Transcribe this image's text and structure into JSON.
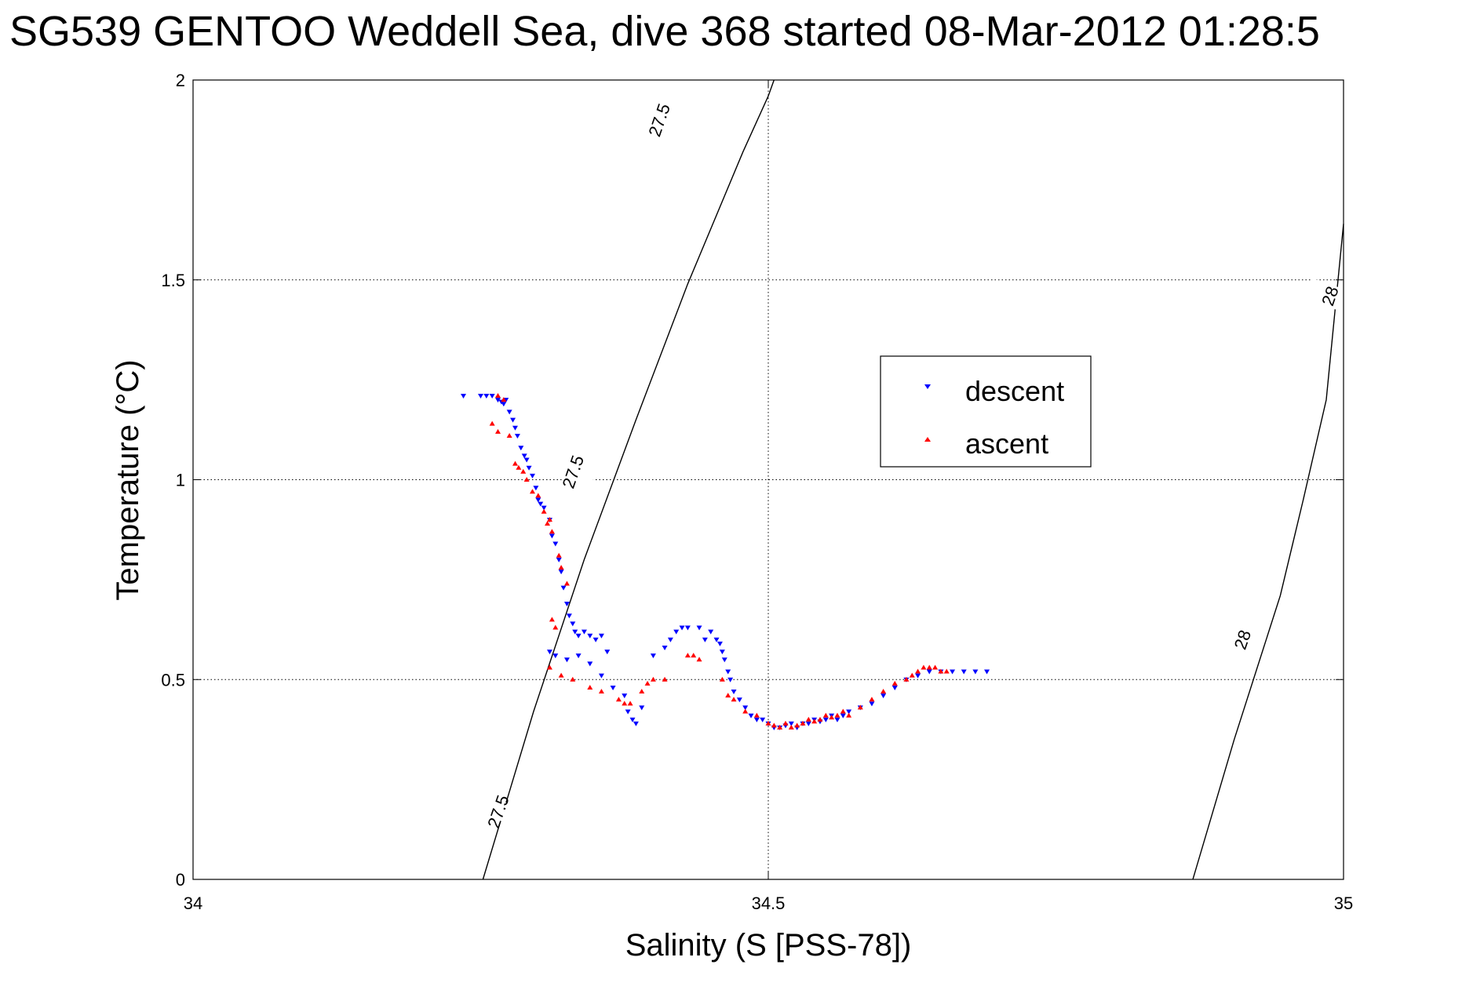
{
  "chart_data": {
    "type": "scatter",
    "title": "SG539 GENTOO Weddell Sea, dive 368 started 08-Mar-2012 01:28:5",
    "xlabel": "Salinity (S [PSS-78])",
    "ylabel": "Temperature (°C)",
    "xlim": [
      34,
      35
    ],
    "ylim": [
      0,
      2
    ],
    "grid": true,
    "legend_position": "upper-right",
    "x_ticks": [
      34,
      34.5,
      35
    ],
    "x_tick_labels": [
      "34",
      "34.5",
      "35"
    ],
    "y_ticks": [
      0,
      0.5,
      1,
      1.5,
      2
    ],
    "y_tick_labels": [
      "0",
      "0.5",
      "1",
      "1.5",
      "2"
    ],
    "series": [
      {
        "name": "descent",
        "marker": "triangle-down",
        "color": "#0000ff",
        "points": [
          [
            34.235,
            1.21
          ],
          [
            34.25,
            1.21
          ],
          [
            34.255,
            1.21
          ],
          [
            34.26,
            1.21
          ],
          [
            34.265,
            1.2
          ],
          [
            34.268,
            1.195
          ],
          [
            34.27,
            1.19
          ],
          [
            34.272,
            1.2
          ],
          [
            34.275,
            1.17
          ],
          [
            34.278,
            1.15
          ],
          [
            34.28,
            1.13
          ],
          [
            34.282,
            1.11
          ],
          [
            34.285,
            1.08
          ],
          [
            34.288,
            1.06
          ],
          [
            34.29,
            1.05
          ],
          [
            34.292,
            1.03
          ],
          [
            34.295,
            1.01
          ],
          [
            34.298,
            0.98
          ],
          [
            34.3,
            0.95
          ],
          [
            34.302,
            0.94
          ],
          [
            34.305,
            0.93
          ],
          [
            34.31,
            0.9
          ],
          [
            34.312,
            0.86
          ],
          [
            34.315,
            0.84
          ],
          [
            34.318,
            0.8
          ],
          [
            34.32,
            0.77
          ],
          [
            34.322,
            0.73
          ],
          [
            34.325,
            0.69
          ],
          [
            34.327,
            0.66
          ],
          [
            34.33,
            0.64
          ],
          [
            34.332,
            0.62
          ],
          [
            34.335,
            0.61
          ],
          [
            34.34,
            0.62
          ],
          [
            34.345,
            0.61
          ],
          [
            34.35,
            0.6
          ],
          [
            34.355,
            0.61
          ],
          [
            34.36,
            0.57
          ],
          [
            34.31,
            0.57
          ],
          [
            34.315,
            0.56
          ],
          [
            34.325,
            0.55
          ],
          [
            34.335,
            0.56
          ],
          [
            34.345,
            0.54
          ],
          [
            34.355,
            0.51
          ],
          [
            34.365,
            0.48
          ],
          [
            34.375,
            0.46
          ],
          [
            34.378,
            0.42
          ],
          [
            34.382,
            0.4
          ],
          [
            34.385,
            0.39
          ],
          [
            34.39,
            0.43
          ],
          [
            34.4,
            0.56
          ],
          [
            34.41,
            0.58
          ],
          [
            34.415,
            0.6
          ],
          [
            34.42,
            0.62
          ],
          [
            34.425,
            0.63
          ],
          [
            34.43,
            0.63
          ],
          [
            34.44,
            0.63
          ],
          [
            34.445,
            0.6
          ],
          [
            34.45,
            0.62
          ],
          [
            34.455,
            0.6
          ],
          [
            34.458,
            0.59
          ],
          [
            34.46,
            0.57
          ],
          [
            34.462,
            0.55
          ],
          [
            34.465,
            0.52
          ],
          [
            34.467,
            0.5
          ],
          [
            34.47,
            0.47
          ],
          [
            34.475,
            0.45
          ],
          [
            34.48,
            0.43
          ],
          [
            34.485,
            0.41
          ],
          [
            34.49,
            0.4
          ],
          [
            34.495,
            0.4
          ],
          [
            34.5,
            0.39
          ],
          [
            34.505,
            0.38
          ],
          [
            34.51,
            0.38
          ],
          [
            34.515,
            0.385
          ],
          [
            34.52,
            0.39
          ],
          [
            34.525,
            0.38
          ],
          [
            34.53,
            0.39
          ],
          [
            34.535,
            0.39
          ],
          [
            34.54,
            0.4
          ],
          [
            34.545,
            0.395
          ],
          [
            34.55,
            0.4
          ],
          [
            34.555,
            0.41
          ],
          [
            34.56,
            0.4
          ],
          [
            34.565,
            0.41
          ],
          [
            34.57,
            0.42
          ],
          [
            34.58,
            0.43
          ],
          [
            34.59,
            0.44
          ],
          [
            34.6,
            0.46
          ],
          [
            34.61,
            0.48
          ],
          [
            34.62,
            0.5
          ],
          [
            34.63,
            0.51
          ],
          [
            34.64,
            0.52
          ],
          [
            34.65,
            0.52
          ],
          [
            34.66,
            0.52
          ],
          [
            34.67,
            0.52
          ],
          [
            34.68,
            0.52
          ],
          [
            34.69,
            0.52
          ]
        ]
      },
      {
        "name": "ascent",
        "marker": "triangle-up",
        "color": "#ff0000",
        "points": [
          [
            34.265,
            1.21
          ],
          [
            34.27,
            1.2
          ],
          [
            34.26,
            1.14
          ],
          [
            34.265,
            1.12
          ],
          [
            34.275,
            1.11
          ],
          [
            34.28,
            1.04
          ],
          [
            34.283,
            1.03
          ],
          [
            34.287,
            1.02
          ],
          [
            34.29,
            1.0
          ],
          [
            34.295,
            0.97
          ],
          [
            34.3,
            0.96
          ],
          [
            34.305,
            0.92
          ],
          [
            34.308,
            0.89
          ],
          [
            34.31,
            0.9
          ],
          [
            34.312,
            0.87
          ],
          [
            34.318,
            0.81
          ],
          [
            34.32,
            0.78
          ],
          [
            34.325,
            0.74
          ],
          [
            34.312,
            0.65
          ],
          [
            34.315,
            0.63
          ],
          [
            34.31,
            0.53
          ],
          [
            34.32,
            0.51
          ],
          [
            34.33,
            0.5
          ],
          [
            34.345,
            0.48
          ],
          [
            34.355,
            0.47
          ],
          [
            34.37,
            0.45
          ],
          [
            34.375,
            0.44
          ],
          [
            34.38,
            0.44
          ],
          [
            34.39,
            0.47
          ],
          [
            34.395,
            0.49
          ],
          [
            34.4,
            0.5
          ],
          [
            34.41,
            0.5
          ],
          [
            34.43,
            0.56
          ],
          [
            34.435,
            0.56
          ],
          [
            34.44,
            0.55
          ],
          [
            34.46,
            0.5
          ],
          [
            34.465,
            0.46
          ],
          [
            34.47,
            0.45
          ],
          [
            34.48,
            0.42
          ],
          [
            34.49,
            0.41
          ],
          [
            34.5,
            0.39
          ],
          [
            34.505,
            0.385
          ],
          [
            34.51,
            0.38
          ],
          [
            34.515,
            0.39
          ],
          [
            34.52,
            0.38
          ],
          [
            34.525,
            0.385
          ],
          [
            34.53,
            0.39
          ],
          [
            34.535,
            0.4
          ],
          [
            34.54,
            0.395
          ],
          [
            34.545,
            0.4
          ],
          [
            34.55,
            0.41
          ],
          [
            34.555,
            0.405
          ],
          [
            34.56,
            0.41
          ],
          [
            34.565,
            0.42
          ],
          [
            34.57,
            0.41
          ],
          [
            34.58,
            0.43
          ],
          [
            34.59,
            0.45
          ],
          [
            34.6,
            0.47
          ],
          [
            34.61,
            0.49
          ],
          [
            34.62,
            0.5
          ],
          [
            34.625,
            0.51
          ],
          [
            34.63,
            0.52
          ],
          [
            34.635,
            0.53
          ],
          [
            34.64,
            0.53
          ],
          [
            34.645,
            0.53
          ],
          [
            34.65,
            0.52
          ],
          [
            34.655,
            0.52
          ]
        ]
      }
    ],
    "contours": [
      {
        "level": "27.5",
        "points": [
          [
            34.252,
            0.0
          ],
          [
            34.296,
            0.42
          ],
          [
            34.34,
            0.8
          ],
          [
            34.385,
            1.15
          ],
          [
            34.43,
            1.49
          ],
          [
            34.478,
            1.82
          ],
          [
            34.5,
            1.96
          ],
          [
            34.505,
            2.0
          ]
        ],
        "labels": [
          {
            "text": "27.5",
            "x": 34.265,
            "y": 0.17
          },
          {
            "text": "27.5",
            "x": 34.33,
            "y": 1.02
          },
          {
            "text": "27.5",
            "x": 34.405,
            "y": 1.9
          }
        ]
      },
      {
        "level": "28",
        "points": [
          [
            34.869,
            0.0
          ],
          [
            34.905,
            0.35
          ],
          [
            34.945,
            0.71
          ],
          [
            34.965,
            0.95
          ],
          [
            34.985,
            1.2
          ],
          [
            35.0,
            1.64
          ]
        ],
        "labels": [
          {
            "text": "28",
            "x": 34.912,
            "y": 0.6
          },
          {
            "text": "28",
            "x": 34.988,
            "y": 1.46
          }
        ]
      }
    ]
  }
}
